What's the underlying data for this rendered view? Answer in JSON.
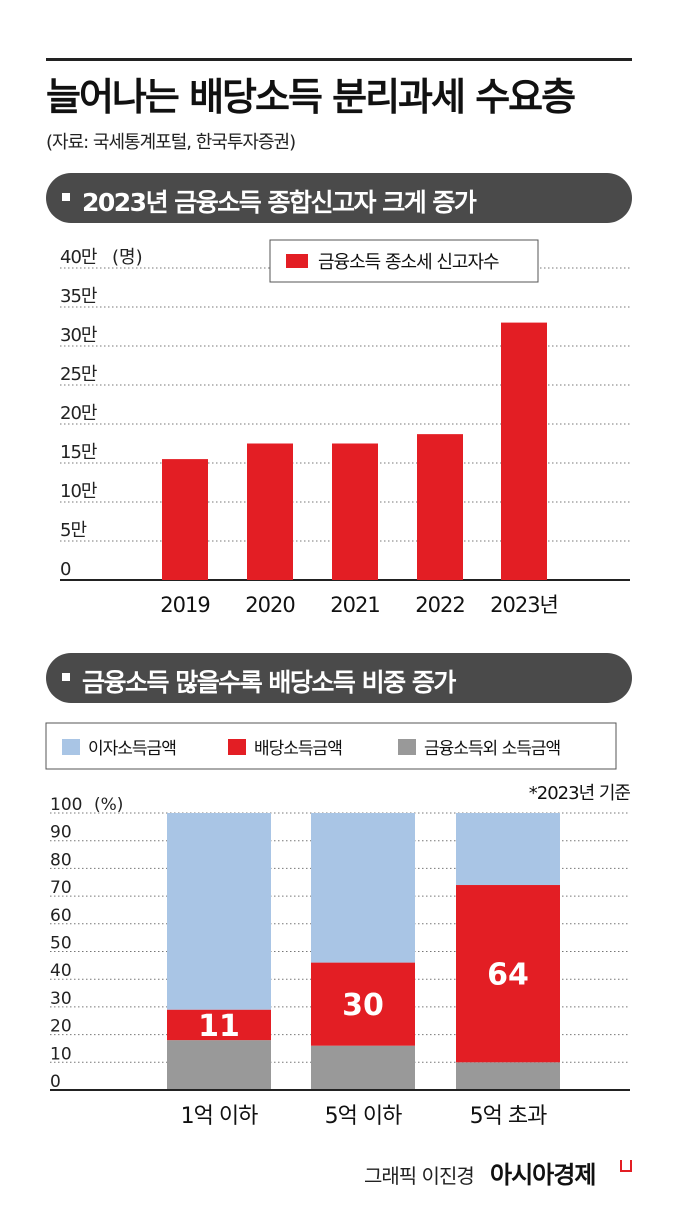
{
  "header": {
    "title": "늘어나는 배당소득 분리과세 수요층",
    "source": "(자료: 국세통계포털, 한국투자증권)"
  },
  "section1": {
    "label": "2023년 금융소득 종합신고자 크게 증가"
  },
  "section2": {
    "label": "금융소득 많을수록 배당소득 비중 증가"
  },
  "footer": {
    "credit": "그래픽 이진경",
    "brand": "아시아경제"
  },
  "colors": {
    "red": "#e31e24",
    "lightblue": "#a9c5e5",
    "gray": "#999999",
    "section_bg": "#4a4a4a"
  },
  "chart_data": [
    {
      "type": "bar",
      "title": "2023년 금융소득 종합신고자 크게 증가",
      "categories": [
        "2019",
        "2020",
        "2021",
        "2022",
        "2023년"
      ],
      "series": [
        {
          "name": "금융소득 종소세 신고자수",
          "values": [
            15.5,
            17.5,
            17.5,
            18.7,
            33.0
          ],
          "color": "#e31e24"
        }
      ],
      "yunit_label": "(명)",
      "yticks": [
        "0",
        "5만",
        "10만",
        "15만",
        "20만",
        "25만",
        "30만",
        "35만",
        "40만"
      ],
      "ylim": [
        0,
        40
      ],
      "grid": true,
      "legend": "top-center"
    },
    {
      "type": "bar",
      "stacked": true,
      "title": "금융소득 많을수록 배당소득 비중 증가",
      "note": "*2023년 기준",
      "categories": [
        "1억 이하",
        "5억 이하",
        "5억 초과"
      ],
      "series": [
        {
          "name": "금융소득외 소득금액",
          "values": [
            18,
            16,
            10
          ],
          "color": "#999999"
        },
        {
          "name": "배당소득금액",
          "values": [
            11,
            30,
            64
          ],
          "color": "#e31e24",
          "labels": [
            "11",
            "30",
            "64"
          ]
        },
        {
          "name": "이자소득금액",
          "values": [
            71,
            54,
            26
          ],
          "color": "#a9c5e5"
        }
      ],
      "legend_order": [
        "이자소득금액",
        "배당소득금액",
        "금융소득외 소득금액"
      ],
      "yunit_label": "(%)",
      "yticks": [
        "0",
        "10",
        "20",
        "30",
        "40",
        "50",
        "60",
        "70",
        "80",
        "90",
        "100"
      ],
      "ylim": [
        0,
        100
      ],
      "grid": true,
      "legend": "top"
    }
  ]
}
